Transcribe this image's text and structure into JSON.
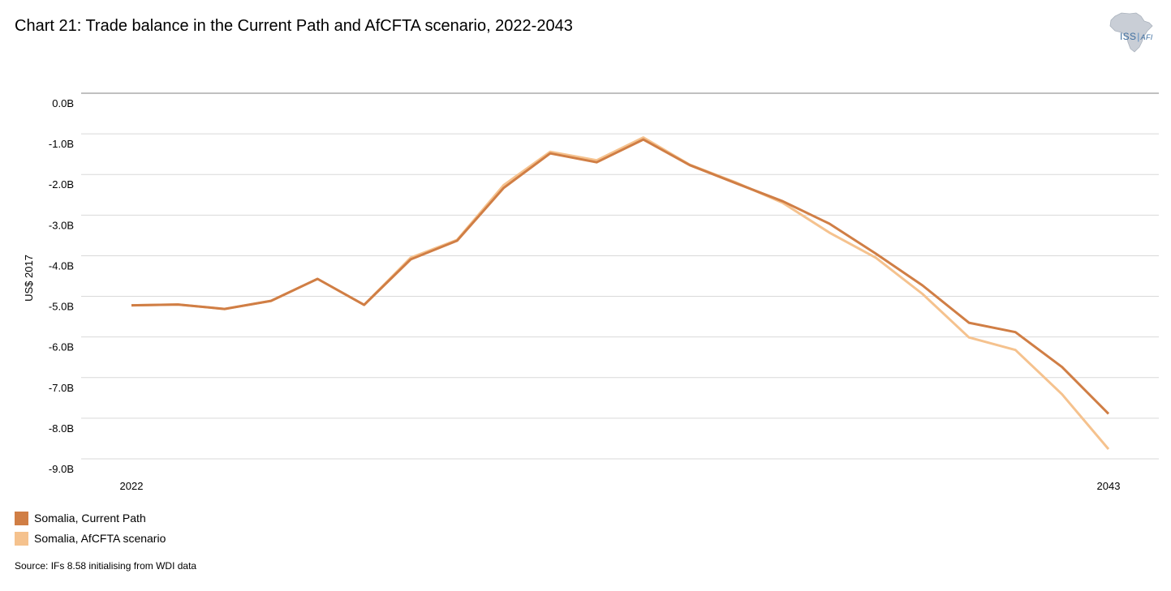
{
  "title": "Chart 21: Trade balance in the Current Path and AfCFTA scenario, 2022-2043",
  "logo": {
    "primary": "ISS",
    "secondary": "AFI",
    "icon": "africa-map-icon"
  },
  "source": "Source: IFs 8.58 initialising from WDI data",
  "colors": {
    "current_path": "#D07E45",
    "afcfta": "#F5C28E",
    "grid": "#D9D9D9",
    "top_rule": "#808080"
  },
  "chart_data": {
    "type": "line",
    "title": "Chart 21: Trade balance in the Current Path and AfCFTA scenario, 2022-2043",
    "xlabel": "",
    "ylabel": "US$ 2017",
    "x": [
      2022,
      2023,
      2024,
      2025,
      2026,
      2027,
      2028,
      2029,
      2030,
      2031,
      2032,
      2033,
      2034,
      2035,
      2036,
      2037,
      2038,
      2039,
      2040,
      2041,
      2042,
      2043
    ],
    "x_tick_labels": [
      "2022",
      "2043"
    ],
    "ylim": [
      -9.0,
      0.0
    ],
    "y_ticks": [
      0,
      -1,
      -2,
      -3,
      -4,
      -5,
      -6,
      -7,
      -8,
      -9
    ],
    "y_tick_labels": [
      "0.0B",
      "-1.0B",
      "-2.0B",
      "-3.0B",
      "-4.0B",
      "-5.0B",
      "-6.0B",
      "-7.0B",
      "-8.0B",
      "-9.0B"
    ],
    "grid": true,
    "legend_position": "bottom-left",
    "series": [
      {
        "name": "Somalia, Current Path",
        "values": [
          -5.22,
          -5.2,
          -5.31,
          -5.11,
          -4.57,
          -5.21,
          -4.09,
          -3.63,
          -2.33,
          -1.48,
          -1.7,
          -1.14,
          -1.77,
          -2.22,
          -2.66,
          -3.21,
          -3.95,
          -4.73,
          -5.65,
          -5.88,
          -6.74,
          -7.89
        ]
      },
      {
        "name": "Somalia, AfCFTA scenario",
        "values": [
          -5.22,
          -5.2,
          -5.31,
          -5.11,
          -4.57,
          -5.21,
          -4.05,
          -3.61,
          -2.26,
          -1.44,
          -1.65,
          -1.09,
          -1.76,
          -2.2,
          -2.7,
          -3.43,
          -4.05,
          -4.94,
          -6.01,
          -6.32,
          -7.41,
          -8.76
        ]
      }
    ]
  }
}
